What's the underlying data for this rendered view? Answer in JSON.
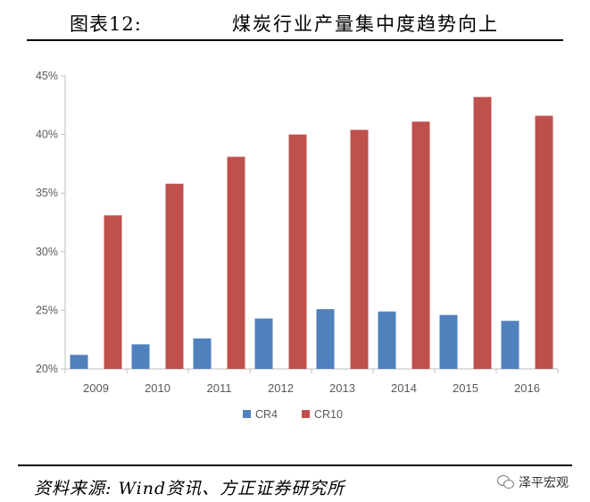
{
  "header": {
    "figure_number": "图表12:",
    "title": "煤炭行业产量集中度趋势向上"
  },
  "footer": {
    "source": "资料来源: Wind资讯、方正证券研究所",
    "brand": "泽平宏观",
    "brand_icon": "wechat-icon"
  },
  "colors": {
    "cr4": "#4f81bd",
    "cr10": "#c0504d",
    "axis": "#bfbfbf",
    "tick_text": "#595959"
  },
  "chart_data": {
    "type": "bar",
    "title": "",
    "xlabel": "",
    "ylabel": "",
    "categories": [
      "2009",
      "2010",
      "2011",
      "2012",
      "2013",
      "2014",
      "2015",
      "2016"
    ],
    "series": [
      {
        "name": "CR4",
        "values": [
          21.2,
          22.1,
          22.6,
          24.3,
          25.1,
          24.9,
          24.6,
          24.1
        ]
      },
      {
        "name": "CR10",
        "values": [
          33.1,
          35.8,
          38.1,
          40.0,
          40.4,
          41.1,
          43.2,
          41.6
        ]
      }
    ],
    "ylim": [
      20,
      45
    ],
    "yticks": [
      "20%",
      "25%",
      "30%",
      "35%",
      "40%",
      "45%"
    ],
    "ytick_values": [
      20,
      25,
      30,
      35,
      40,
      45
    ],
    "grid": false,
    "legend_position": "bottom-center"
  }
}
